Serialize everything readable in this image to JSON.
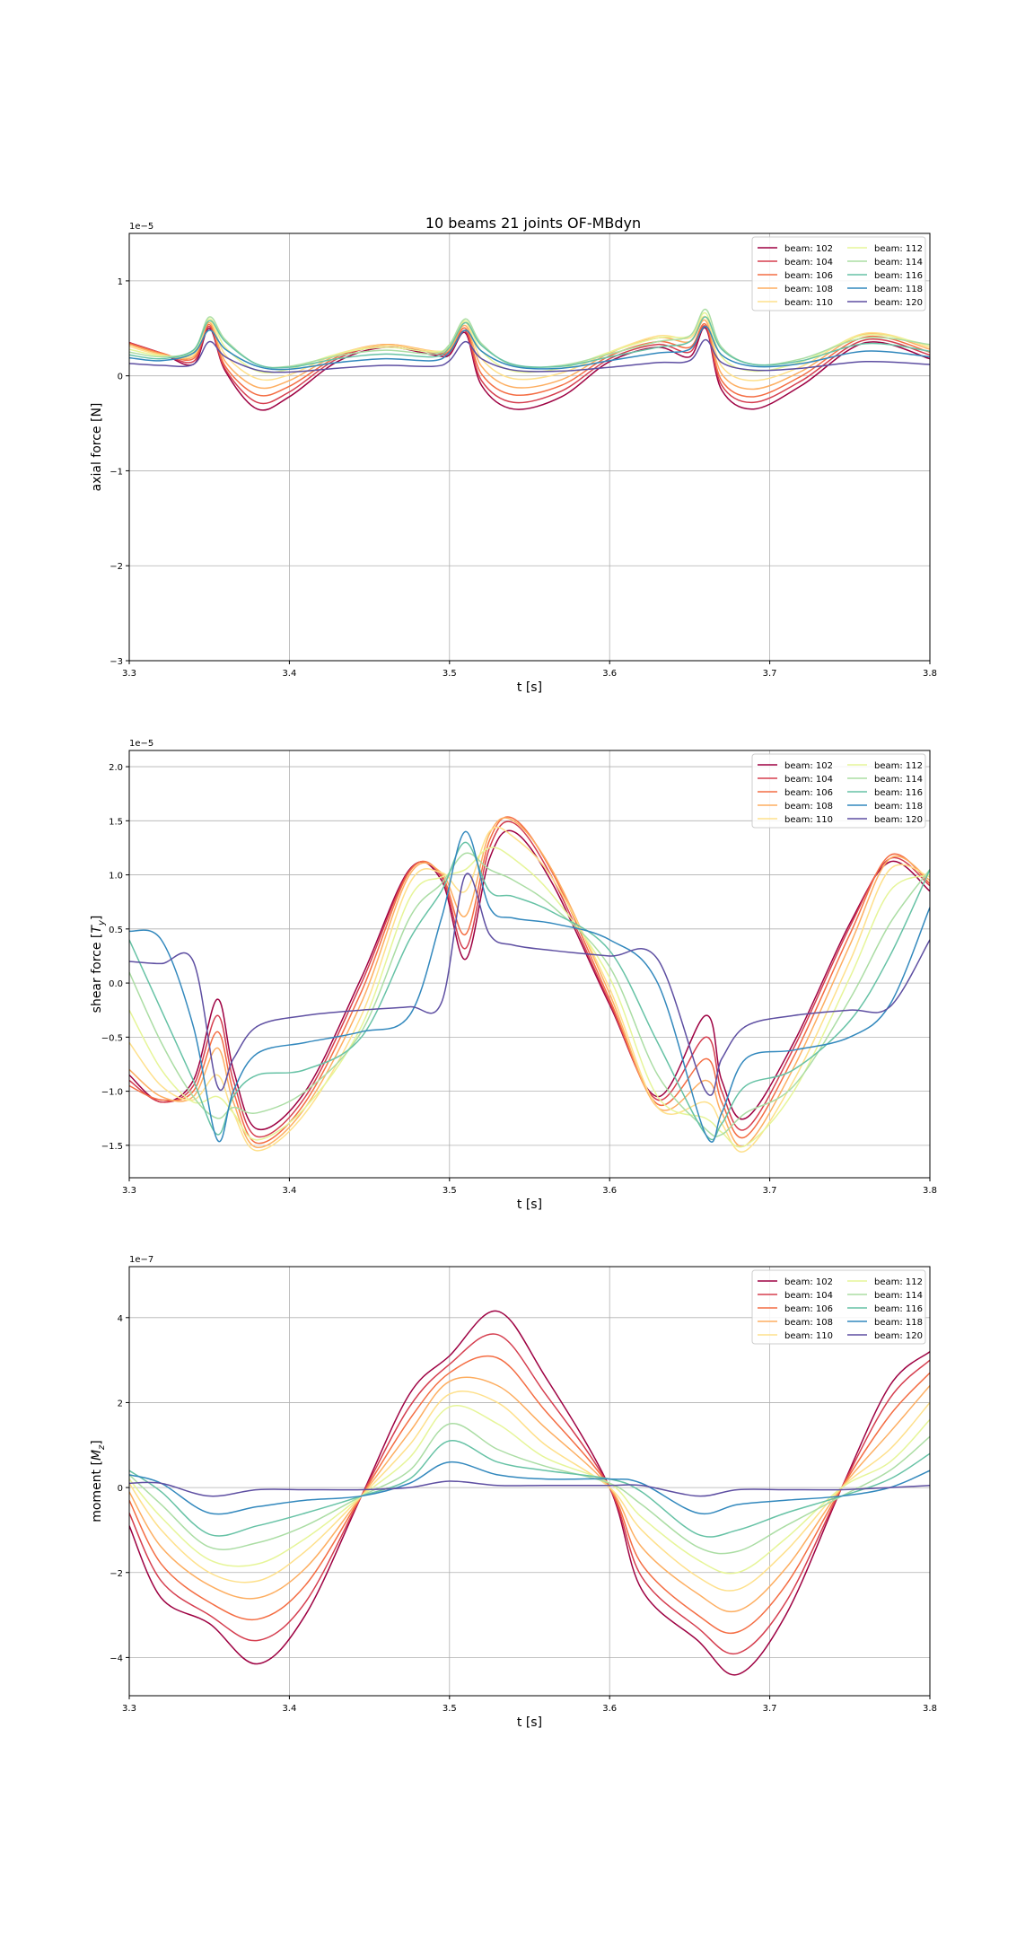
{
  "figure": {
    "title": "10 beams 21 joints OF-MBdyn"
  },
  "legend": {
    "entries": [
      "beam: 102",
      "beam: 104",
      "beam: 106",
      "beam: 108",
      "beam: 110",
      "beam: 112",
      "beam: 114",
      "beam: 116",
      "beam: 118",
      "beam: 120"
    ],
    "colors": [
      "#9e0142",
      "#d53e4f",
      "#f46d43",
      "#fdae61",
      "#fee08b",
      "#e6f598",
      "#abdda4",
      "#66c2a5",
      "#3288bd",
      "#5e4fa2"
    ],
    "placement": "top-right",
    "columns": 2
  },
  "chart_data": [
    {
      "type": "line",
      "xlabel": "t [s]",
      "ylabel": "axial force [N]",
      "y_multiplier": "1e−5",
      "xlim": [
        3.3,
        3.8
      ],
      "ylim": [
        -3.0,
        1.5
      ],
      "xticks": [
        "3.3",
        "3.4",
        "3.5",
        "3.6",
        "3.7",
        "3.8"
      ],
      "yticks": [
        -3,
        -2,
        -1,
        0,
        1
      ],
      "ytick_labels": [
        "−3",
        "−2",
        "−1",
        "0",
        "1"
      ],
      "grid": true,
      "x": [
        3.3,
        3.32,
        3.34,
        3.35,
        3.36,
        3.38,
        3.4,
        3.43,
        3.46,
        3.49,
        3.5,
        3.51,
        3.52,
        3.54,
        3.57,
        3.6,
        3.63,
        3.65,
        3.66,
        3.67,
        3.69,
        3.72,
        3.76,
        3.8
      ],
      "series": [
        {
          "name": "beam: 102",
          "values": [
            0.35,
            0.24,
            0.12,
            0.5,
            0.05,
            -0.35,
            -0.22,
            0.15,
            0.3,
            0.22,
            0.22,
            0.45,
            -0.1,
            -0.35,
            -0.22,
            0.15,
            0.3,
            0.2,
            0.5,
            -0.15,
            -0.35,
            -0.1,
            0.35,
            0.18
          ]
        },
        {
          "name": "beam: 104",
          "values": [
            0.35,
            0.24,
            0.15,
            0.52,
            0.07,
            -0.28,
            -0.17,
            0.18,
            0.32,
            0.24,
            0.24,
            0.47,
            -0.05,
            -0.28,
            -0.16,
            0.18,
            0.33,
            0.25,
            0.52,
            -0.1,
            -0.28,
            -0.05,
            0.38,
            0.22
          ]
        },
        {
          "name": "beam: 106",
          "values": [
            0.34,
            0.24,
            0.18,
            0.54,
            0.1,
            -0.2,
            -0.11,
            0.2,
            0.33,
            0.25,
            0.26,
            0.5,
            0.02,
            -0.2,
            -0.1,
            0.21,
            0.36,
            0.3,
            0.54,
            -0.05,
            -0.22,
            0.0,
            0.41,
            0.25
          ]
        },
        {
          "name": "beam: 108",
          "values": [
            0.33,
            0.23,
            0.2,
            0.56,
            0.15,
            -0.12,
            -0.05,
            0.22,
            0.33,
            0.26,
            0.28,
            0.53,
            0.1,
            -0.12,
            -0.04,
            0.24,
            0.4,
            0.36,
            0.58,
            0.02,
            -0.14,
            0.05,
            0.44,
            0.28
          ]
        },
        {
          "name": "beam: 110",
          "values": [
            0.31,
            0.22,
            0.22,
            0.58,
            0.22,
            -0.03,
            0.01,
            0.23,
            0.32,
            0.26,
            0.3,
            0.56,
            0.18,
            -0.03,
            0.03,
            0.25,
            0.42,
            0.4,
            0.62,
            0.1,
            -0.05,
            0.1,
            0.45,
            0.3
          ]
        },
        {
          "name": "beam: 112",
          "values": [
            0.28,
            0.21,
            0.25,
            0.6,
            0.3,
            0.05,
            0.07,
            0.23,
            0.3,
            0.25,
            0.32,
            0.58,
            0.26,
            0.05,
            0.08,
            0.25,
            0.4,
            0.42,
            0.66,
            0.2,
            0.05,
            0.15,
            0.43,
            0.32
          ]
        },
        {
          "name": "beam: 114",
          "values": [
            0.25,
            0.2,
            0.27,
            0.62,
            0.38,
            0.12,
            0.1,
            0.21,
            0.27,
            0.23,
            0.33,
            0.6,
            0.34,
            0.11,
            0.11,
            0.23,
            0.36,
            0.42,
            0.7,
            0.3,
            0.12,
            0.18,
            0.4,
            0.33
          ]
        },
        {
          "name": "beam: 116",
          "values": [
            0.22,
            0.18,
            0.27,
            0.58,
            0.36,
            0.12,
            0.09,
            0.18,
            0.23,
            0.2,
            0.3,
            0.56,
            0.32,
            0.12,
            0.1,
            0.2,
            0.3,
            0.36,
            0.62,
            0.28,
            0.12,
            0.16,
            0.34,
            0.26
          ]
        },
        {
          "name": "beam: 118",
          "values": [
            0.19,
            0.16,
            0.24,
            0.48,
            0.28,
            0.1,
            0.07,
            0.14,
            0.18,
            0.16,
            0.25,
            0.48,
            0.26,
            0.1,
            0.08,
            0.16,
            0.24,
            0.28,
            0.52,
            0.22,
            0.1,
            0.13,
            0.26,
            0.2
          ]
        },
        {
          "name": "beam: 120",
          "values": [
            0.13,
            0.11,
            0.12,
            0.36,
            0.2,
            0.06,
            0.04,
            0.08,
            0.11,
            0.1,
            0.16,
            0.36,
            0.18,
            0.06,
            0.05,
            0.09,
            0.14,
            0.16,
            0.38,
            0.14,
            0.06,
            0.08,
            0.15,
            0.12
          ]
        }
      ]
    },
    {
      "type": "line",
      "xlabel": "t [s]",
      "ylabel": "shear force [T_y]",
      "y_multiplier": "1e−5",
      "xlim": [
        3.3,
        3.8
      ],
      "ylim": [
        -1.8,
        2.15
      ],
      "xticks": [
        "3.3",
        "3.4",
        "3.5",
        "3.6",
        "3.7",
        "3.8"
      ],
      "yticks": [
        -1.5,
        -1.0,
        -0.5,
        0.0,
        0.5,
        1.0,
        1.5,
        2.0
      ],
      "ytick_labels": [
        "−1.5",
        "−1.0",
        "−0.5",
        "0.0",
        "0.5",
        "1.0",
        "1.5",
        "2.0"
      ],
      "grid": true,
      "x": [
        3.3,
        3.32,
        3.34,
        3.355,
        3.365,
        3.38,
        3.41,
        3.445,
        3.475,
        3.495,
        3.51,
        3.525,
        3.54,
        3.565,
        3.6,
        3.63,
        3.66,
        3.67,
        3.685,
        3.715,
        3.75,
        3.775,
        3.8
      ],
      "series": [
        {
          "name": "beam: 102",
          "values": [
            -0.85,
            -1.1,
            -0.9,
            -0.15,
            -0.8,
            -1.35,
            -1.0,
            0.05,
            1.05,
            0.95,
            0.22,
            1.15,
            1.4,
            0.9,
            -0.2,
            -1.05,
            -0.3,
            -0.9,
            -1.25,
            -0.55,
            0.55,
            1.12,
            0.85
          ]
        },
        {
          "name": "beam: 104",
          "values": [
            -0.9,
            -1.1,
            -0.95,
            -0.3,
            -0.9,
            -1.42,
            -1.05,
            0.0,
            1.04,
            0.98,
            0.32,
            1.25,
            1.48,
            0.95,
            -0.18,
            -1.08,
            -0.5,
            -1.0,
            -1.35,
            -0.6,
            0.52,
            1.15,
            0.9
          ]
        },
        {
          "name": "beam: 106",
          "values": [
            -0.95,
            -1.08,
            -1.0,
            -0.45,
            -1.0,
            -1.48,
            -1.1,
            -0.08,
            1.03,
            1.0,
            0.45,
            1.32,
            1.52,
            1.0,
            -0.15,
            -1.12,
            -0.7,
            -1.1,
            -1.42,
            -0.68,
            0.45,
            1.18,
            0.92
          ]
        },
        {
          "name": "beam: 108",
          "values": [
            -0.8,
            -1.05,
            -1.05,
            -0.6,
            -1.1,
            -1.52,
            -1.15,
            -0.18,
            1.0,
            1.02,
            0.62,
            1.38,
            1.5,
            1.02,
            -0.1,
            -1.15,
            -0.9,
            -1.2,
            -1.5,
            -0.78,
            0.35,
            1.15,
            0.95
          ]
        },
        {
          "name": "beam: 110",
          "values": [
            -0.55,
            -0.95,
            -1.08,
            -0.85,
            -1.2,
            -1.55,
            -1.2,
            -0.3,
            0.92,
            1.02,
            0.85,
            1.4,
            1.35,
            0.95,
            -0.05,
            -1.15,
            -1.1,
            -1.3,
            -1.55,
            -0.9,
            0.2,
            1.05,
            0.98
          ]
        },
        {
          "name": "beam: 112",
          "values": [
            -0.25,
            -0.8,
            -1.1,
            -1.05,
            -1.2,
            -1.45,
            -1.15,
            -0.4,
            0.78,
            0.98,
            1.05,
            1.25,
            1.15,
            0.8,
            0.05,
            -1.05,
            -1.25,
            -1.38,
            -1.5,
            -1.0,
            0.05,
            0.85,
            1.0
          ]
        },
        {
          "name": "beam: 114",
          "values": [
            0.1,
            -0.55,
            -1.05,
            -1.25,
            -1.15,
            -1.2,
            -1.0,
            -0.45,
            0.6,
            0.92,
            1.2,
            1.05,
            0.95,
            0.7,
            0.15,
            -0.85,
            -1.35,
            -1.4,
            -1.2,
            -0.95,
            -0.15,
            0.55,
            1.05
          ]
        },
        {
          "name": "beam: 116",
          "values": [
            0.4,
            -0.25,
            -0.9,
            -1.4,
            -1.05,
            -0.85,
            -0.8,
            -0.5,
            0.4,
            0.85,
            1.3,
            0.85,
            0.8,
            0.65,
            0.3,
            -0.55,
            -1.4,
            -1.3,
            -0.95,
            -0.8,
            -0.35,
            0.25,
            1.05
          ]
        },
        {
          "name": "beam: 118",
          "values": [
            0.48,
            0.4,
            -0.4,
            -1.45,
            -1.0,
            -0.65,
            -0.55,
            -0.45,
            -0.3,
            0.6,
            1.4,
            0.7,
            0.6,
            0.55,
            0.4,
            0.0,
            -1.4,
            -1.2,
            -0.7,
            -0.62,
            -0.5,
            -0.2,
            0.7
          ]
        },
        {
          "name": "beam: 120",
          "values": [
            0.2,
            0.18,
            0.2,
            -0.95,
            -0.7,
            -0.4,
            -0.3,
            -0.25,
            -0.22,
            -0.18,
            1.0,
            0.45,
            0.35,
            0.3,
            0.25,
            0.22,
            -1.0,
            -0.7,
            -0.4,
            -0.3,
            -0.25,
            -0.22,
            0.4
          ]
        }
      ]
    },
    {
      "type": "line",
      "xlabel": "t [s]",
      "ylabel": "moment [M_z]",
      "y_multiplier": "1e−7",
      "xlim": [
        3.3,
        3.8
      ],
      "ylim": [
        -4.9,
        5.2
      ],
      "xticks": [
        "3.3",
        "3.4",
        "3.5",
        "3.6",
        "3.7",
        "3.8"
      ],
      "yticks": [
        -4,
        -2,
        0,
        2,
        4
      ],
      "ytick_labels": [
        "−4",
        "−2",
        "0",
        "2",
        "4"
      ],
      "grid": true,
      "x": [
        3.3,
        3.32,
        3.35,
        3.38,
        3.41,
        3.445,
        3.475,
        3.5,
        3.53,
        3.56,
        3.6,
        3.62,
        3.655,
        3.68,
        3.71,
        3.745,
        3.775,
        3.8
      ],
      "series": [
        {
          "name": "beam: 102",
          "values": [
            -0.9,
            -2.6,
            -3.2,
            -4.15,
            -3.0,
            -0.2,
            2.2,
            3.1,
            4.15,
            2.6,
            0.0,
            -2.4,
            -3.6,
            -4.4,
            -3.0,
            0.0,
            2.4,
            3.2
          ]
        },
        {
          "name": "beam: 104",
          "values": [
            -0.6,
            -2.2,
            -3.0,
            -3.6,
            -2.7,
            -0.2,
            1.9,
            2.9,
            3.6,
            2.2,
            0.0,
            -2.1,
            -3.3,
            -3.9,
            -2.7,
            0.0,
            2.1,
            3.0
          ]
        },
        {
          "name": "beam: 106",
          "values": [
            -0.3,
            -1.8,
            -2.7,
            -3.1,
            -2.3,
            -0.2,
            1.6,
            2.7,
            3.05,
            1.8,
            0.0,
            -1.8,
            -3.0,
            -3.4,
            -2.3,
            0.0,
            1.7,
            2.7
          ]
        },
        {
          "name": "beam: 108",
          "values": [
            -0.1,
            -1.4,
            -2.3,
            -2.6,
            -1.9,
            -0.2,
            1.3,
            2.5,
            2.4,
            1.4,
            0.0,
            -1.4,
            -2.5,
            -2.9,
            -1.9,
            0.0,
            1.3,
            2.4
          ]
        },
        {
          "name": "beam: 110",
          "values": [
            0.1,
            -1.0,
            -2.0,
            -2.2,
            -1.5,
            -0.2,
            1.0,
            2.2,
            2.0,
            1.0,
            0.0,
            -1.0,
            -2.1,
            -2.4,
            -1.5,
            0.0,
            0.9,
            2.0
          ]
        },
        {
          "name": "beam: 112",
          "values": [
            0.2,
            -0.7,
            -1.7,
            -1.8,
            -1.2,
            -0.2,
            0.7,
            1.9,
            1.5,
            0.7,
            0.1,
            -0.7,
            -1.7,
            -2.0,
            -1.2,
            0.0,
            0.6,
            1.6
          ]
        },
        {
          "name": "beam: 114",
          "values": [
            0.3,
            -0.4,
            -1.4,
            -1.3,
            -0.9,
            -0.2,
            0.4,
            1.5,
            0.9,
            0.5,
            0.1,
            -0.4,
            -1.4,
            -1.5,
            -0.9,
            -0.2,
            0.4,
            1.2
          ]
        },
        {
          "name": "beam: 116",
          "values": [
            0.4,
            -0.1,
            -1.1,
            -0.9,
            -0.6,
            -0.2,
            0.2,
            1.1,
            0.6,
            0.4,
            0.2,
            -0.1,
            -1.1,
            -1.0,
            -0.6,
            -0.2,
            0.2,
            0.8
          ]
        },
        {
          "name": "beam: 118",
          "values": [
            0.3,
            0.1,
            -0.6,
            -0.45,
            -0.3,
            -0.2,
            0.1,
            0.6,
            0.3,
            0.2,
            0.2,
            0.1,
            -0.6,
            -0.4,
            -0.3,
            -0.2,
            0.0,
            0.4
          ]
        },
        {
          "name": "beam: 120",
          "values": [
            0.1,
            0.1,
            -0.2,
            -0.05,
            -0.05,
            -0.05,
            0.0,
            0.15,
            0.05,
            0.05,
            0.05,
            0.05,
            -0.2,
            -0.05,
            -0.05,
            -0.05,
            0.0,
            0.05
          ]
        }
      ]
    }
  ]
}
